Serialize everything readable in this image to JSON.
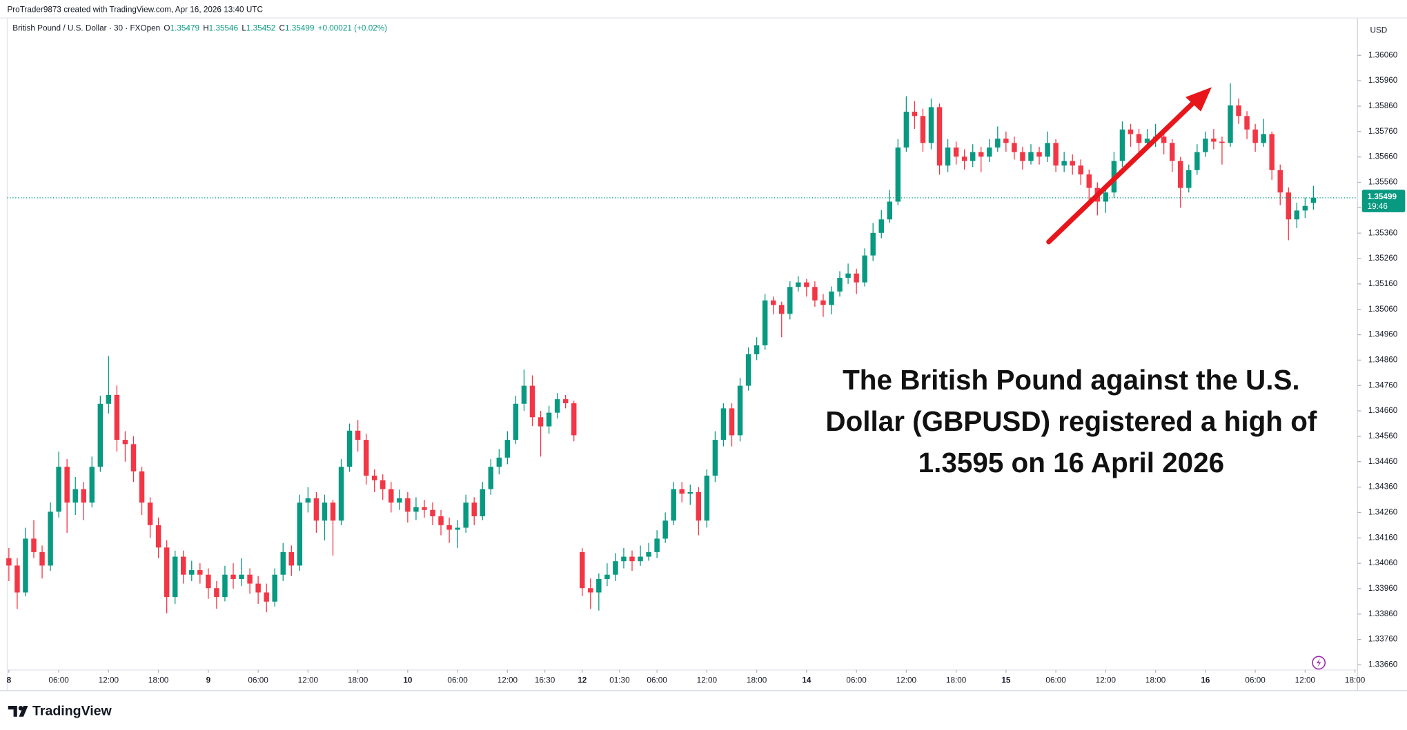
{
  "chart_data": {
    "type": "candlestick",
    "attribution": "ProTrader9873 created with TradingView.com, Apr 16, 2026 13:40 UTC",
    "title": "British Pound / U.S. Dollar · 30 · FXOpen",
    "ohlc_labels": [
      "O",
      "H",
      "L",
      "C"
    ],
    "change": "+0.00021 (+0.02%)",
    "currency": "USD",
    "countdown": "19:46",
    "annotation": [
      "The British Pound against the U.S.",
      "Dollar (GBPUSD) registered a high of",
      "1.3595 on 16 April 2026"
    ],
    "brand": "TradingView",
    "up_color": "#089981",
    "down_color": "#f23645",
    "grid": false,
    "last_price_line": true,
    "xlim": [
      -0.2,
      162.3
    ],
    "ylim": [
      1.3364,
      1.362
    ],
    "xticks": [
      {
        "value": 0,
        "label": "8"
      },
      {
        "value": 6,
        "label": "06:00"
      },
      {
        "value": 12,
        "label": "12:00"
      },
      {
        "value": 18,
        "label": "18:00"
      },
      {
        "value": 24,
        "label": "9"
      },
      {
        "value": 30,
        "label": "06:00"
      },
      {
        "value": 36,
        "label": "12:00"
      },
      {
        "value": 42,
        "label": "18:00"
      },
      {
        "value": 48,
        "label": "10"
      },
      {
        "value": 54,
        "label": "06:00"
      },
      {
        "value": 60,
        "label": "12:00"
      },
      {
        "value": 64.5,
        "label": "16:30"
      },
      {
        "value": 69,
        "label": "12"
      },
      {
        "value": 73.5,
        "label": "01:30"
      },
      {
        "value": 78,
        "label": "06:00"
      },
      {
        "value": 84,
        "label": "12:00"
      },
      {
        "value": 90,
        "label": "18:00"
      },
      {
        "value": 96,
        "label": "14"
      },
      {
        "value": 102,
        "label": "06:00"
      },
      {
        "value": 108,
        "label": "12:00"
      },
      {
        "value": 114,
        "label": "18:00"
      },
      {
        "value": 120,
        "label": "15"
      },
      {
        "value": 126,
        "label": "06:00"
      },
      {
        "value": 132,
        "label": "12:00"
      },
      {
        "value": 138,
        "label": "18:00"
      },
      {
        "value": 144,
        "label": "16"
      },
      {
        "value": 150,
        "label": "06:00"
      },
      {
        "value": 156,
        "label": "12:00"
      },
      {
        "value": 162,
        "label": "18:00"
      }
    ],
    "yticks": [
      {
        "value": 1.3366,
        "label": "1.33660"
      },
      {
        "value": 1.3376,
        "label": "1.33760"
      },
      {
        "value": 1.3386,
        "label": "1.33860"
      },
      {
        "value": 1.3396,
        "label": "1.33960"
      },
      {
        "value": 1.3406,
        "label": "1.34060"
      },
      {
        "value": 1.3416,
        "label": "1.34160"
      },
      {
        "value": 1.3426,
        "label": "1.34260"
      },
      {
        "value": 1.3436,
        "label": "1.34360"
      },
      {
        "value": 1.3446,
        "label": "1.34460"
      },
      {
        "value": 1.3456,
        "label": "1.34560"
      },
      {
        "value": 1.3466,
        "label": "1.34660"
      },
      {
        "value": 1.3476,
        "label": "1.34760"
      },
      {
        "value": 1.3486,
        "label": "1.34860"
      },
      {
        "value": 1.3496,
        "label": "1.34960"
      },
      {
        "value": 1.3506,
        "label": "1.35060"
      },
      {
        "value": 1.3516,
        "label": "1.35160"
      },
      {
        "value": 1.3526,
        "label": "1.35260"
      },
      {
        "value": 1.3536,
        "label": "1.35360"
      },
      {
        "value": 1.3546,
        "label": "1.35460"
      },
      {
        "value": 1.3556,
        "label": "1.35560"
      },
      {
        "value": 1.3566,
        "label": "1.35660"
      },
      {
        "value": 1.3576,
        "label": "1.35760"
      },
      {
        "value": 1.3586,
        "label": "1.35860"
      },
      {
        "value": 1.3596,
        "label": "1.35960"
      },
      {
        "value": 1.3606,
        "label": "1.36060"
      }
    ],
    "x": [
      0,
      1,
      2,
      3,
      4,
      5,
      6,
      7,
      8,
      9,
      10,
      11,
      12,
      13,
      14,
      15,
      16,
      17,
      18,
      19,
      20,
      21,
      22,
      23,
      24,
      25,
      26,
      27,
      28,
      29,
      30,
      31,
      32,
      33,
      34,
      35,
      36,
      37,
      38,
      39,
      40,
      41,
      42,
      43,
      44,
      45,
      46,
      47,
      48,
      49,
      50,
      51,
      52,
      53,
      54,
      55,
      56,
      57,
      58,
      59,
      60,
      61,
      62,
      63,
      64,
      65,
      66,
      67,
      68,
      69,
      70,
      71,
      72,
      73,
      74,
      75,
      76,
      77,
      78,
      79,
      80,
      81,
      82,
      83,
      84,
      85,
      86,
      87,
      88,
      89,
      90,
      91,
      92,
      93,
      94,
      95,
      96,
      97,
      98,
      99,
      100,
      101,
      102,
      103,
      104,
      105,
      106,
      107,
      108,
      109,
      110,
      111,
      112,
      113,
      114,
      115,
      116,
      117,
      118,
      119,
      120,
      121,
      122,
      123,
      124,
      125,
      126,
      127,
      128,
      129,
      130,
      131,
      132,
      133,
      134,
      135,
      136,
      137,
      138,
      139,
      140,
      141,
      142,
      143,
      144,
      145,
      146,
      147,
      148,
      149,
      150,
      151,
      152,
      153,
      154,
      155,
      156,
      157
    ],
    "candles": [
      [
        1.3408,
        1.3412,
        1.3399,
        1.34051
      ],
      [
        1.34051,
        1.3408,
        1.3388,
        1.33945
      ],
      [
        1.33945,
        1.342,
        1.3393,
        1.34157
      ],
      [
        1.34157,
        1.3423,
        1.3408,
        1.34104
      ],
      [
        1.34104,
        1.3413,
        1.34,
        1.34051
      ],
      [
        1.34051,
        1.343,
        1.3403,
        1.34263
      ],
      [
        1.34263,
        1.345,
        1.3424,
        1.3444
      ],
      [
        1.3444,
        1.3447,
        1.3418,
        1.34299
      ],
      [
        1.34299,
        1.344,
        1.3425,
        1.34352
      ],
      [
        1.34352,
        1.3438,
        1.3423,
        1.34299
      ],
      [
        1.34299,
        1.3448,
        1.3428,
        1.3444
      ],
      [
        1.3444,
        1.3472,
        1.3442,
        1.34688
      ],
      [
        1.34688,
        1.34876,
        1.3465,
        1.34723
      ],
      [
        1.34723,
        1.3476,
        1.345,
        1.34546
      ],
      [
        1.34546,
        1.3458,
        1.3446,
        1.34529
      ],
      [
        1.34529,
        1.3456,
        1.3438,
        1.34422
      ],
      [
        1.34422,
        1.3444,
        1.3425,
        1.34299
      ],
      [
        1.34299,
        1.3432,
        1.3416,
        1.3421
      ],
      [
        1.3421,
        1.3424,
        1.3408,
        1.34122
      ],
      [
        1.34122,
        1.3415,
        1.33863,
        1.33927
      ],
      [
        1.33927,
        1.3411,
        1.339,
        1.34086
      ],
      [
        1.34086,
        1.3411,
        1.3398,
        1.34015
      ],
      [
        1.34015,
        1.3407,
        1.3399,
        1.34033
      ],
      [
        1.34033,
        1.3406,
        1.3398,
        1.34015
      ],
      [
        1.34015,
        1.3404,
        1.3392,
        1.33962
      ],
      [
        1.33962,
        1.3399,
        1.33881,
        1.33927
      ],
      [
        1.33927,
        1.3405,
        1.3391,
        1.34015
      ],
      [
        1.34015,
        1.3406,
        1.3396,
        1.33998
      ],
      [
        1.33998,
        1.3408,
        1.3397,
        1.34015
      ],
      [
        1.34015,
        1.3404,
        1.3394,
        1.3398
      ],
      [
        1.3398,
        1.3401,
        1.339,
        1.33945
      ],
      [
        1.33945,
        1.3398,
        1.33867,
        1.33909
      ],
      [
        1.33909,
        1.3404,
        1.3389,
        1.34015
      ],
      [
        1.34015,
        1.3414,
        1.3399,
        1.34104
      ],
      [
        1.34104,
        1.3413,
        1.3401,
        1.34051
      ],
      [
        1.34051,
        1.3433,
        1.3403,
        1.34299
      ],
      [
        1.34299,
        1.3436,
        1.3426,
        1.34316
      ],
      [
        1.34316,
        1.3434,
        1.3418,
        1.34228
      ],
      [
        1.34228,
        1.3433,
        1.3415,
        1.34299
      ],
      [
        1.34299,
        1.3431,
        1.3409,
        1.34228
      ],
      [
        1.34228,
        1.3447,
        1.3421,
        1.3444
      ],
      [
        1.3444,
        1.3461,
        1.3442,
        1.34582
      ],
      [
        1.34582,
        1.34624,
        1.345,
        1.34546
      ],
      [
        1.34546,
        1.3457,
        1.3437,
        1.34405
      ],
      [
        1.34405,
        1.3443,
        1.3434,
        1.34387
      ],
      [
        1.34387,
        1.3441,
        1.3431,
        1.34352
      ],
      [
        1.34352,
        1.3438,
        1.3426,
        1.34299
      ],
      [
        1.34299,
        1.3435,
        1.3427,
        1.34316
      ],
      [
        1.34316,
        1.3434,
        1.3422,
        1.34263
      ],
      [
        1.34263,
        1.3432,
        1.3423,
        1.34281
      ],
      [
        1.34281,
        1.3431,
        1.3424,
        1.3427
      ],
      [
        1.3427,
        1.343,
        1.3421,
        1.34245
      ],
      [
        1.34245,
        1.3427,
        1.3417,
        1.3421
      ],
      [
        1.3421,
        1.3424,
        1.3414,
        1.34192
      ],
      [
        1.34192,
        1.3423,
        1.3412,
        1.342
      ],
      [
        1.342,
        1.3433,
        1.3418,
        1.34299
      ],
      [
        1.34299,
        1.3432,
        1.3421,
        1.34245
      ],
      [
        1.34245,
        1.3438,
        1.3423,
        1.34352
      ],
      [
        1.34352,
        1.3447,
        1.3433,
        1.3444
      ],
      [
        1.3444,
        1.3451,
        1.3441,
        1.34476
      ],
      [
        1.34476,
        1.3458,
        1.3445,
        1.34546
      ],
      [
        1.34546,
        1.3472,
        1.3453,
        1.34688
      ],
      [
        1.34688,
        1.34823,
        1.3466,
        1.34759
      ],
      [
        1.34759,
        1.348,
        1.346,
        1.34635
      ],
      [
        1.34635,
        1.3466,
        1.3448,
        1.34599
      ],
      [
        1.34599,
        1.3468,
        1.3457,
        1.34653
      ],
      [
        1.34653,
        1.3473,
        1.3463,
        1.34706
      ],
      [
        1.34706,
        1.34723,
        1.3467,
        1.3469
      ],
      [
        1.3469,
        1.347,
        1.3454,
        1.34564
      ],
      [
        1.34104,
        1.3412,
        1.3393,
        1.33962
      ],
      [
        1.33962,
        1.34,
        1.3388,
        1.33945
      ],
      [
        1.33945,
        1.3402,
        1.33874,
        1.33998
      ],
      [
        1.33998,
        1.3406,
        1.3397,
        1.34015
      ],
      [
        1.34015,
        1.341,
        1.3399,
        1.34068
      ],
      [
        1.34068,
        1.3412,
        1.3404,
        1.34086
      ],
      [
        1.34086,
        1.3411,
        1.3403,
        1.34068
      ],
      [
        1.34068,
        1.3413,
        1.3405,
        1.34086
      ],
      [
        1.34086,
        1.3414,
        1.3407,
        1.34104
      ],
      [
        1.34104,
        1.3419,
        1.3408,
        1.34157
      ],
      [
        1.34157,
        1.3426,
        1.3414,
        1.34228
      ],
      [
        1.34228,
        1.3438,
        1.3421,
        1.34352
      ],
      [
        1.34352,
        1.3438,
        1.343,
        1.34334
      ],
      [
        1.34334,
        1.3437,
        1.3429,
        1.3434
      ],
      [
        1.3434,
        1.3436,
        1.3417,
        1.34228
      ],
      [
        1.34228,
        1.3443,
        1.342,
        1.34405
      ],
      [
        1.34405,
        1.3458,
        1.3438,
        1.34546
      ],
      [
        1.34546,
        1.3469,
        1.3452,
        1.3467
      ],
      [
        1.3467,
        1.3469,
        1.3452,
        1.34564
      ],
      [
        1.34564,
        1.3479,
        1.3454,
        1.34759
      ],
      [
        1.34759,
        1.3491,
        1.3474,
        1.34883
      ],
      [
        1.34883,
        1.3495,
        1.3486,
        1.34918
      ],
      [
        1.34918,
        1.3512,
        1.349,
        1.35095
      ],
      [
        1.35095,
        1.3511,
        1.3504,
        1.35077
      ],
      [
        1.35077,
        1.3509,
        1.3495,
        1.35042
      ],
      [
        1.35042,
        1.3517,
        1.3502,
        1.35148
      ],
      [
        1.35148,
        1.3519,
        1.3513,
        1.35166
      ],
      [
        1.35166,
        1.3518,
        1.3511,
        1.35148
      ],
      [
        1.35148,
        1.3517,
        1.3507,
        1.35095
      ],
      [
        1.35095,
        1.3512,
        1.3503,
        1.35077
      ],
      [
        1.35077,
        1.3515,
        1.3504,
        1.3513
      ],
      [
        1.3513,
        1.3521,
        1.3511,
        1.35184
      ],
      [
        1.35184,
        1.3524,
        1.3516,
        1.35201
      ],
      [
        1.35201,
        1.3522,
        1.3512,
        1.35166
      ],
      [
        1.35166,
        1.353,
        1.3515,
        1.35272
      ],
      [
        1.35272,
        1.354,
        1.3525,
        1.35361
      ],
      [
        1.35361,
        1.3545,
        1.3534,
        1.35414
      ],
      [
        1.35414,
        1.3553,
        1.354,
        1.35484
      ],
      [
        1.35484,
        1.3573,
        1.3547,
        1.35697
      ],
      [
        1.35697,
        1.35899,
        1.3568,
        1.35838
      ],
      [
        1.35838,
        1.3588,
        1.3577,
        1.35821
      ],
      [
        1.35821,
        1.3585,
        1.3568,
        1.35715
      ],
      [
        1.35715,
        1.3589,
        1.3569,
        1.35856
      ],
      [
        1.35856,
        1.3587,
        1.3559,
        1.35626
      ],
      [
        1.35626,
        1.3573,
        1.356,
        1.35697
      ],
      [
        1.35697,
        1.3572,
        1.3563,
        1.35661
      ],
      [
        1.35661,
        1.3569,
        1.3561,
        1.35644
      ],
      [
        1.35644,
        1.3571,
        1.3562,
        1.35679
      ],
      [
        1.35679,
        1.357,
        1.356,
        1.35661
      ],
      [
        1.35661,
        1.3573,
        1.3564,
        1.35697
      ],
      [
        1.35697,
        1.3578,
        1.3568,
        1.35732
      ],
      [
        1.35732,
        1.3576,
        1.3568,
        1.35715
      ],
      [
        1.35715,
        1.3574,
        1.3565,
        1.35679
      ],
      [
        1.35679,
        1.357,
        1.3561,
        1.35644
      ],
      [
        1.35644,
        1.3571,
        1.3563,
        1.35679
      ],
      [
        1.35679,
        1.357,
        1.3563,
        1.35661
      ],
      [
        1.35661,
        1.3576,
        1.3564,
        1.35715
      ],
      [
        1.35715,
        1.3573,
        1.356,
        1.35626
      ],
      [
        1.35626,
        1.3568,
        1.356,
        1.35644
      ],
      [
        1.35644,
        1.3567,
        1.3559,
        1.35626
      ],
      [
        1.35626,
        1.3565,
        1.3555,
        1.35591
      ],
      [
        1.35591,
        1.3561,
        1.3549,
        1.35538
      ],
      [
        1.35538,
        1.3556,
        1.3543,
        1.35484
      ],
      [
        1.35484,
        1.3555,
        1.3544,
        1.3552
      ],
      [
        1.3552,
        1.3568,
        1.355,
        1.35644
      ],
      [
        1.35644,
        1.358,
        1.3562,
        1.35768
      ],
      [
        1.35768,
        1.3579,
        1.357,
        1.3575
      ],
      [
        1.3575,
        1.3577,
        1.3568,
        1.35715
      ],
      [
        1.35715,
        1.3577,
        1.3569,
        1.35732
      ],
      [
        1.35732,
        1.3579,
        1.357,
        1.3574
      ],
      [
        1.3574,
        1.3576,
        1.3567,
        1.35715
      ],
      [
        1.35715,
        1.3573,
        1.356,
        1.35644
      ],
      [
        1.35644,
        1.3566,
        1.3546,
        1.35538
      ],
      [
        1.35538,
        1.3563,
        1.3552,
        1.35608
      ],
      [
        1.35608,
        1.3571,
        1.3559,
        1.35679
      ],
      [
        1.35679,
        1.3576,
        1.3566,
        1.35732
      ],
      [
        1.35732,
        1.3577,
        1.3569,
        1.3572
      ],
      [
        1.3572,
        1.3574,
        1.3563,
        1.35715
      ],
      [
        1.35715,
        1.3595,
        1.357,
        1.35863
      ],
      [
        1.35863,
        1.3589,
        1.3579,
        1.35821
      ],
      [
        1.35821,
        1.3584,
        1.3573,
        1.35768
      ],
      [
        1.35768,
        1.3579,
        1.3568,
        1.35715
      ],
      [
        1.35715,
        1.3581,
        1.357,
        1.3575
      ],
      [
        1.3575,
        1.3576,
        1.3557,
        1.35608
      ],
      [
        1.35608,
        1.3563,
        1.3547,
        1.3552
      ],
      [
        1.3552,
        1.3554,
        1.35332,
        1.35414
      ],
      [
        1.35414,
        1.3548,
        1.3538,
        1.35449
      ],
      [
        1.35449,
        1.355,
        1.3542,
        1.35467
      ],
      [
        1.35479,
        1.35546,
        1.35452,
        1.35499
      ]
    ]
  }
}
